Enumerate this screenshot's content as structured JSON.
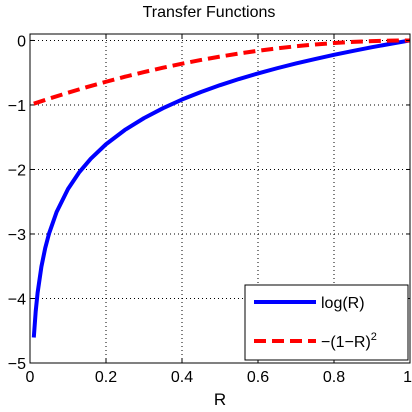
{
  "chart_data": {
    "type": "line",
    "title": "Transfer Functions",
    "xlabel": "R",
    "ylabel": "",
    "xlim": [
      0,
      1
    ],
    "ylim": [
      -5,
      0.1
    ],
    "grid": true,
    "legend_position": "bottom-right",
    "x_ticks": [
      {
        "value": 0,
        "label": "0"
      },
      {
        "value": 0.2,
        "label": "0.2"
      },
      {
        "value": 0.4,
        "label": "0.4"
      },
      {
        "value": 0.6,
        "label": "0.6"
      },
      {
        "value": 0.8,
        "label": "0.8"
      },
      {
        "value": 1,
        "label": "1"
      }
    ],
    "y_ticks": [
      {
        "value": 0,
        "label": "0"
      },
      {
        "value": -1,
        "label": "−1"
      },
      {
        "value": -2,
        "label": "−2"
      },
      {
        "value": -3,
        "label": "−3"
      },
      {
        "value": -4,
        "label": "−4"
      },
      {
        "value": -5,
        "label": "−5"
      }
    ],
    "series": [
      {
        "name": "log(R)",
        "color": "#0000ff",
        "style": "solid",
        "x": [
          0.01,
          0.015,
          0.02,
          0.03,
          0.04,
          0.05,
          0.07,
          0.1,
          0.13,
          0.16,
          0.2,
          0.25,
          0.3,
          0.35,
          0.4,
          0.45,
          0.5,
          0.55,
          0.6,
          0.65,
          0.7,
          0.75,
          0.8,
          0.85,
          0.9,
          0.95,
          1.0
        ],
        "y": [
          -4.605,
          -4.2,
          -3.912,
          -3.507,
          -3.219,
          -2.996,
          -2.659,
          -2.303,
          -2.04,
          -1.833,
          -1.609,
          -1.386,
          -1.204,
          -1.05,
          -0.916,
          -0.799,
          -0.693,
          -0.598,
          -0.511,
          -0.431,
          -0.357,
          -0.288,
          -0.223,
          -0.163,
          -0.105,
          -0.051,
          0
        ]
      },
      {
        "name": "−(1−R)",
        "name_sup": "2",
        "color": "#ff0000",
        "style": "dashed",
        "x": [
          0.01,
          0.05,
          0.1,
          0.15,
          0.2,
          0.25,
          0.3,
          0.35,
          0.4,
          0.45,
          0.5,
          0.55,
          0.6,
          0.65,
          0.7,
          0.75,
          0.8,
          0.85,
          0.9,
          0.95,
          1.0
        ],
        "y": [
          -0.98,
          -0.9025,
          -0.81,
          -0.7225,
          -0.64,
          -0.5625,
          -0.49,
          -0.4225,
          -0.36,
          -0.3025,
          -0.25,
          -0.2025,
          -0.16,
          -0.1225,
          -0.09,
          -0.0625,
          -0.04,
          -0.0225,
          -0.01,
          -0.0025,
          0
        ]
      }
    ]
  }
}
